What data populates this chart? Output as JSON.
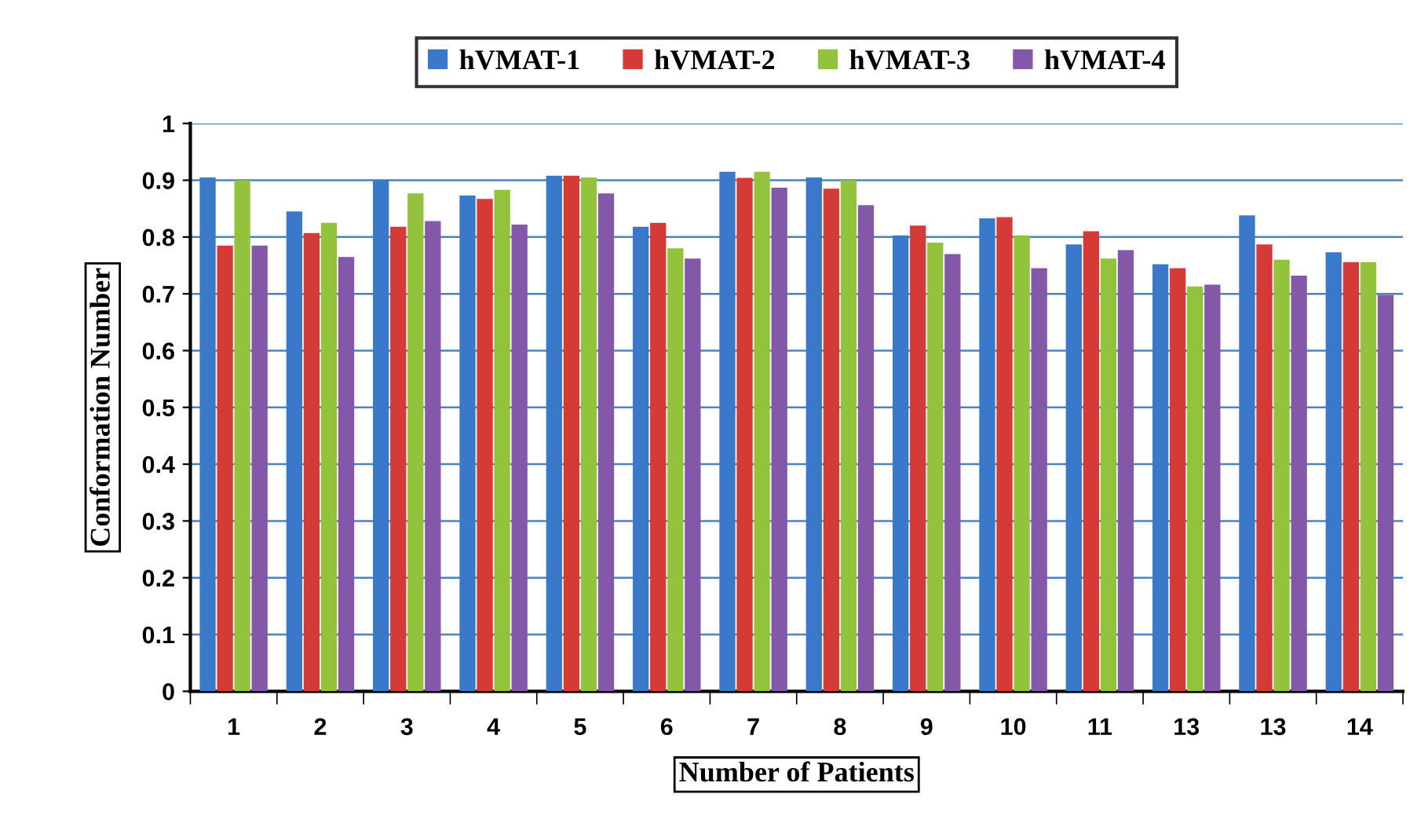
{
  "chart_data": {
    "type": "bar",
    "xlabel": "Number of Patients",
    "ylabel": "Conformation Number",
    "categories": [
      "1",
      "2",
      "3",
      "4",
      "5",
      "6",
      "7",
      "8",
      "9",
      "10",
      "11",
      "13",
      "13",
      "14"
    ],
    "series": [
      {
        "name": "hVMAT-1",
        "color": "#3a78c9",
        "values": [
          0.905,
          0.845,
          0.9,
          0.873,
          0.908,
          0.818,
          0.915,
          0.905,
          0.803,
          0.833,
          0.787,
          0.752,
          0.838,
          0.773
        ]
      },
      {
        "name": "hVMAT-2",
        "color": "#d43a36",
        "values": [
          0.785,
          0.807,
          0.818,
          0.867,
          0.908,
          0.825,
          0.904,
          0.885,
          0.82,
          0.835,
          0.81,
          0.745,
          0.787,
          0.756
        ]
      },
      {
        "name": "hVMAT-3",
        "color": "#93c23c",
        "values": [
          0.9,
          0.825,
          0.877,
          0.883,
          0.905,
          0.78,
          0.915,
          0.9,
          0.79,
          0.803,
          0.762,
          0.713,
          0.76,
          0.756
        ]
      },
      {
        "name": "hVMAT-4",
        "color": "#8458a8",
        "values": [
          0.785,
          0.765,
          0.828,
          0.822,
          0.877,
          0.762,
          0.887,
          0.856,
          0.77,
          0.745,
          0.777,
          0.716,
          0.732,
          0.698
        ]
      }
    ],
    "ylim": [
      0,
      1
    ],
    "yticks": [
      0,
      0.1,
      0.2,
      0.3,
      0.4,
      0.5,
      0.6,
      0.7,
      0.8,
      0.9,
      1
    ],
    "grid": "y",
    "legend": "top"
  }
}
